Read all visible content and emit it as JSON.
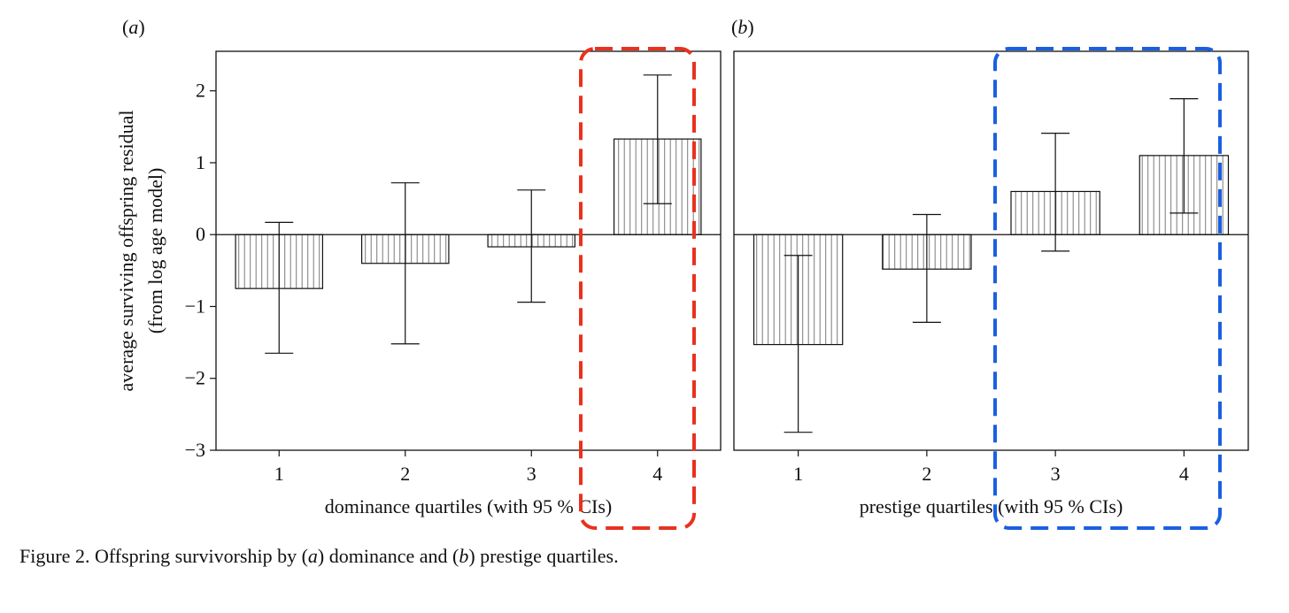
{
  "figure": {
    "caption": {
      "prefix": "Figure 2. Offspring survivorship by (",
      "a": "a",
      "mid": ") dominance and (",
      "b": "b",
      "suffix": ") prestige quartiles."
    }
  },
  "chart_data": [
    {
      "type": "bar",
      "panel_label": "a",
      "xlabel": "dominance quartiles (with 95 % CIs)",
      "ylabel": [
        "average surviving offspring residual",
        "(from log age model)"
      ],
      "categories": [
        "1",
        "2",
        "3",
        "4"
      ],
      "values": [
        -0.75,
        -0.4,
        -0.17,
        1.33
      ],
      "ci_lower": [
        -1.65,
        -1.52,
        -0.94,
        0.43
      ],
      "ci_upper": [
        0.17,
        0.72,
        0.62,
        2.22
      ],
      "ylim": [
        -3,
        2.55
      ],
      "yticks": [
        -3,
        -2,
        -1,
        0,
        1,
        2
      ],
      "ytick_labels": [
        "−3",
        "−2",
        "−1",
        "0",
        "1",
        "2"
      ],
      "bar_fill": "vertical-hatch",
      "highlight": {
        "categories": [
          "4"
        ],
        "color": "#e8321e",
        "style": "dashed"
      }
    },
    {
      "type": "bar",
      "panel_label": "b",
      "xlabel": "prestige quartiles (with 95 % CIs)",
      "ylabel": [],
      "categories": [
        "1",
        "2",
        "3",
        "4"
      ],
      "values": [
        -1.53,
        -0.48,
        0.6,
        1.1
      ],
      "ci_lower": [
        -2.75,
        -1.22,
        -0.23,
        0.3
      ],
      "ci_upper": [
        -0.29,
        0.28,
        1.41,
        1.89
      ],
      "ylim": [
        -3,
        2.55
      ],
      "yticks": [],
      "ytick_labels": [],
      "bar_fill": "vertical-hatch",
      "highlight": {
        "categories": [
          "3",
          "4"
        ],
        "color": "#1a5fe0",
        "style": "dashed"
      }
    }
  ]
}
